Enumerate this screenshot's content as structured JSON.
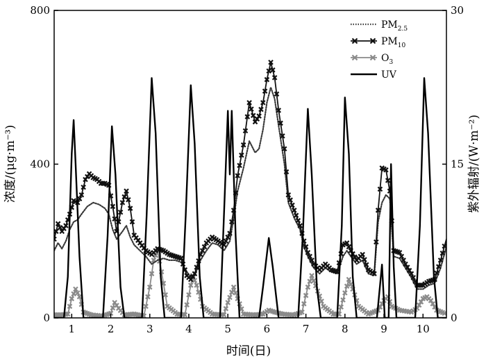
{
  "chart_data": {
    "type": "line",
    "xlabel": "时间(日)",
    "ylabel_left": "浓度/(μg·m⁻³)",
    "ylabel_right": "紫外辐射/(W·m⁻²)",
    "xlim": [
      0.55,
      10.6
    ],
    "ylim_left": [
      0,
      800
    ],
    "ylim_right": [
      0,
      30
    ],
    "x_ticks": [
      1,
      2,
      3,
      4,
      5,
      6,
      7,
      8,
      9,
      10
    ],
    "x_tick_labels": [
      "1",
      "2",
      "3",
      "4",
      "5",
      "6",
      "7",
      "8",
      "9",
      "10"
    ],
    "y_left_ticks": [
      0,
      400,
      800
    ],
    "y_left_tick_labels": [
      "0",
      "400",
      "800"
    ],
    "y_right_ticks": [
      0,
      15,
      30
    ],
    "y_right_tick_labels": [
      "0",
      "15",
      "30"
    ],
    "grid": false,
    "legend_position": "top-right",
    "legend": [
      {
        "key": "pm25",
        "base": "PM",
        "sub": "2.5"
      },
      {
        "key": "pm10",
        "base": "PM",
        "sub": "10"
      },
      {
        "key": "o3",
        "base": "O",
        "sub": "3"
      },
      {
        "key": "uv",
        "base": "UV",
        "sub": ""
      }
    ],
    "series": [
      {
        "key": "pm25",
        "axis": "left",
        "color": "#3a3a3a",
        "style": "dotted",
        "points": [
          [
            0.55,
            175
          ],
          [
            0.65,
            195
          ],
          [
            0.75,
            180
          ],
          [
            0.85,
            200
          ],
          [
            0.95,
            230
          ],
          [
            1.05,
            250
          ],
          [
            1.15,
            255
          ],
          [
            1.25,
            270
          ],
          [
            1.4,
            290
          ],
          [
            1.55,
            300
          ],
          [
            1.7,
            295
          ],
          [
            1.85,
            285
          ],
          [
            1.95,
            270
          ],
          [
            2.05,
            230
          ],
          [
            2.15,
            205
          ],
          [
            2.3,
            225
          ],
          [
            2.4,
            240
          ],
          [
            2.5,
            210
          ],
          [
            2.6,
            190
          ],
          [
            2.75,
            175
          ],
          [
            2.9,
            160
          ],
          [
            3.05,
            140
          ],
          [
            3.2,
            150
          ],
          [
            3.35,
            155
          ],
          [
            3.5,
            150
          ],
          [
            3.65,
            150
          ],
          [
            3.8,
            145
          ],
          [
            3.95,
            120
          ],
          [
            4.05,
            105
          ],
          [
            4.15,
            110
          ],
          [
            4.3,
            150
          ],
          [
            4.45,
            175
          ],
          [
            4.6,
            195
          ],
          [
            4.75,
            190
          ],
          [
            4.9,
            175
          ],
          [
            5.05,
            200
          ],
          [
            5.15,
            260
          ],
          [
            5.25,
            330
          ],
          [
            5.4,
            390
          ],
          [
            5.55,
            460
          ],
          [
            5.7,
            430
          ],
          [
            5.8,
            440
          ],
          [
            5.9,
            490
          ],
          [
            6.0,
            560
          ],
          [
            6.1,
            600
          ],
          [
            6.2,
            570
          ],
          [
            6.3,
            500
          ],
          [
            6.45,
            400
          ],
          [
            6.55,
            300
          ],
          [
            6.7,
            260
          ],
          [
            6.85,
            230
          ],
          [
            6.95,
            185
          ],
          [
            7.05,
            160
          ],
          [
            7.2,
            130
          ],
          [
            7.35,
            115
          ],
          [
            7.5,
            130
          ],
          [
            7.65,
            120
          ],
          [
            7.8,
            115
          ],
          [
            7.95,
            160
          ],
          [
            8.05,
            175
          ],
          [
            8.15,
            160
          ],
          [
            8.3,
            140
          ],
          [
            8.45,
            150
          ],
          [
            8.6,
            115
          ],
          [
            8.75,
            110
          ],
          [
            8.85,
            250
          ],
          [
            8.95,
            300
          ],
          [
            9.05,
            320
          ],
          [
            9.15,
            310
          ],
          [
            9.25,
            160
          ],
          [
            9.4,
            155
          ],
          [
            9.55,
            130
          ],
          [
            9.7,
            105
          ],
          [
            9.85,
            75
          ],
          [
            10.0,
            75
          ],
          [
            10.15,
            85
          ],
          [
            10.3,
            90
          ],
          [
            10.45,
            130
          ],
          [
            10.6,
            185
          ]
        ]
      },
      {
        "key": "pm10",
        "axis": "left",
        "color": "#111111",
        "style": "solid-cross",
        "points": [
          [
            0.55,
            205
          ],
          [
            0.65,
            245
          ],
          [
            0.75,
            225
          ],
          [
            0.85,
            240
          ],
          [
            0.95,
            270
          ],
          [
            1.05,
            305
          ],
          [
            1.15,
            300
          ],
          [
            1.25,
            320
          ],
          [
            1.35,
            360
          ],
          [
            1.45,
            375
          ],
          [
            1.55,
            365
          ],
          [
            1.65,
            360
          ],
          [
            1.75,
            350
          ],
          [
            1.85,
            350
          ],
          [
            1.95,
            345
          ],
          [
            2.05,
            290
          ],
          [
            2.15,
            225
          ],
          [
            2.3,
            300
          ],
          [
            2.4,
            330
          ],
          [
            2.5,
            285
          ],
          [
            2.6,
            215
          ],
          [
            2.75,
            195
          ],
          [
            2.9,
            175
          ],
          [
            3.05,
            165
          ],
          [
            3.2,
            180
          ],
          [
            3.35,
            175
          ],
          [
            3.5,
            165
          ],
          [
            3.65,
            160
          ],
          [
            3.8,
            155
          ],
          [
            3.95,
            110
          ],
          [
            4.05,
            100
          ],
          [
            4.15,
            115
          ],
          [
            4.3,
            165
          ],
          [
            4.45,
            195
          ],
          [
            4.6,
            210
          ],
          [
            4.75,
            200
          ],
          [
            4.9,
            190
          ],
          [
            5.05,
            220
          ],
          [
            5.15,
            280
          ],
          [
            5.25,
            370
          ],
          [
            5.4,
            450
          ],
          [
            5.55,
            560
          ],
          [
            5.7,
            510
          ],
          [
            5.8,
            525
          ],
          [
            5.9,
            560
          ],
          [
            6.0,
            620
          ],
          [
            6.1,
            665
          ],
          [
            6.2,
            625
          ],
          [
            6.3,
            540
          ],
          [
            6.45,
            440
          ],
          [
            6.55,
            320
          ],
          [
            6.7,
            280
          ],
          [
            6.85,
            240
          ],
          [
            6.95,
            200
          ],
          [
            7.05,
            170
          ],
          [
            7.2,
            140
          ],
          [
            7.35,
            125
          ],
          [
            7.5,
            140
          ],
          [
            7.65,
            125
          ],
          [
            7.8,
            120
          ],
          [
            7.95,
            190
          ],
          [
            8.05,
            195
          ],
          [
            8.15,
            175
          ],
          [
            8.3,
            150
          ],
          [
            8.45,
            165
          ],
          [
            8.6,
            125
          ],
          [
            8.75,
            115
          ],
          [
            8.85,
            280
          ],
          [
            8.95,
            390
          ],
          [
            9.05,
            385
          ],
          [
            9.15,
            330
          ],
          [
            9.25,
            175
          ],
          [
            9.4,
            170
          ],
          [
            9.55,
            140
          ],
          [
            9.7,
            115
          ],
          [
            9.85,
            85
          ],
          [
            10.0,
            85
          ],
          [
            10.15,
            95
          ],
          [
            10.3,
            100
          ],
          [
            10.45,
            150
          ],
          [
            10.6,
            205
          ]
        ]
      },
      {
        "key": "o3",
        "axis": "left",
        "color": "#8a8a8a",
        "style": "solid-cross",
        "points": [
          [
            0.55,
            8
          ],
          [
            0.75,
            8
          ],
          [
            0.9,
            10
          ],
          [
            1.0,
            50
          ],
          [
            1.1,
            75
          ],
          [
            1.2,
            55
          ],
          [
            1.3,
            15
          ],
          [
            1.5,
            8
          ],
          [
            1.8,
            5
          ],
          [
            2.0,
            12
          ],
          [
            2.1,
            40
          ],
          [
            2.2,
            25
          ],
          [
            2.35,
            8
          ],
          [
            2.6,
            10
          ],
          [
            2.85,
            5
          ],
          [
            3.0,
            80
          ],
          [
            3.1,
            150
          ],
          [
            3.2,
            175
          ],
          [
            3.3,
            120
          ],
          [
            3.45,
            30
          ],
          [
            3.7,
            10
          ],
          [
            3.9,
            8
          ],
          [
            4.0,
            60
          ],
          [
            4.1,
            110
          ],
          [
            4.2,
            85
          ],
          [
            4.35,
            30
          ],
          [
            4.6,
            10
          ],
          [
            4.9,
            8
          ],
          [
            5.0,
            40
          ],
          [
            5.15,
            80
          ],
          [
            5.25,
            50
          ],
          [
            5.4,
            10
          ],
          [
            5.7,
            8
          ],
          [
            5.9,
            10
          ],
          [
            6.05,
            20
          ],
          [
            6.2,
            15
          ],
          [
            6.4,
            10
          ],
          [
            6.7,
            8
          ],
          [
            6.9,
            15
          ],
          [
            7.05,
            80
          ],
          [
            7.15,
            110
          ],
          [
            7.3,
            70
          ],
          [
            7.45,
            30
          ],
          [
            7.7,
            10
          ],
          [
            7.85,
            10
          ],
          [
            8.0,
            65
          ],
          [
            8.1,
            100
          ],
          [
            8.2,
            75
          ],
          [
            8.35,
            30
          ],
          [
            8.6,
            10
          ],
          [
            8.85,
            20
          ],
          [
            9.0,
            45
          ],
          [
            9.1,
            55
          ],
          [
            9.2,
            30
          ],
          [
            9.4,
            20
          ],
          [
            9.7,
            15
          ],
          [
            9.85,
            25
          ],
          [
            10.0,
            50
          ],
          [
            10.1,
            55
          ],
          [
            10.2,
            45
          ],
          [
            10.35,
            20
          ],
          [
            10.6,
            10
          ]
        ]
      },
      {
        "key": "uv",
        "axis": "right",
        "color": "#000000",
        "style": "solid",
        "points": [
          [
            0.55,
            0
          ],
          [
            0.8,
            0
          ],
          [
            0.9,
            4
          ],
          [
            1.0,
            16
          ],
          [
            1.05,
            19.3
          ],
          [
            1.1,
            15
          ],
          [
            1.2,
            6
          ],
          [
            1.3,
            0
          ],
          [
            1.8,
            0
          ],
          [
            1.92,
            8
          ],
          [
            2.03,
            18.7
          ],
          [
            2.12,
            14
          ],
          [
            2.25,
            3
          ],
          [
            2.35,
            0
          ],
          [
            2.8,
            0
          ],
          [
            2.92,
            10
          ],
          [
            3.05,
            23.4
          ],
          [
            3.15,
            18
          ],
          [
            3.28,
            4
          ],
          [
            3.38,
            0
          ],
          [
            3.8,
            0
          ],
          [
            3.92,
            10
          ],
          [
            4.05,
            22.7
          ],
          [
            4.15,
            17
          ],
          [
            4.28,
            4
          ],
          [
            4.38,
            0
          ],
          [
            4.8,
            0
          ],
          [
            4.92,
            12
          ],
          [
            5.0,
            20.2
          ],
          [
            5.05,
            14
          ],
          [
            5.1,
            20.2
          ],
          [
            5.2,
            8
          ],
          [
            5.3,
            0
          ],
          [
            5.8,
            0
          ],
          [
            5.9,
            3
          ],
          [
            6.05,
            7.8
          ],
          [
            6.15,
            5
          ],
          [
            6.3,
            0
          ],
          [
            6.8,
            0
          ],
          [
            6.92,
            8
          ],
          [
            7.05,
            20.4
          ],
          [
            7.15,
            14
          ],
          [
            7.28,
            3
          ],
          [
            7.38,
            0
          ],
          [
            7.8,
            0
          ],
          [
            7.92,
            9
          ],
          [
            8.0,
            21.5
          ],
          [
            8.1,
            16
          ],
          [
            8.2,
            4
          ],
          [
            8.3,
            0
          ],
          [
            8.82,
            0
          ],
          [
            8.95,
            5.2
          ],
          [
            9.02,
            0
          ],
          [
            9.12,
            0
          ],
          [
            9.18,
            15
          ],
          [
            9.25,
            5
          ],
          [
            9.32,
            0
          ],
          [
            9.8,
            0
          ],
          [
            9.92,
            9
          ],
          [
            10.03,
            23.4
          ],
          [
            10.13,
            18
          ],
          [
            10.28,
            4
          ],
          [
            10.38,
            0
          ],
          [
            10.6,
            0
          ]
        ]
      }
    ]
  }
}
